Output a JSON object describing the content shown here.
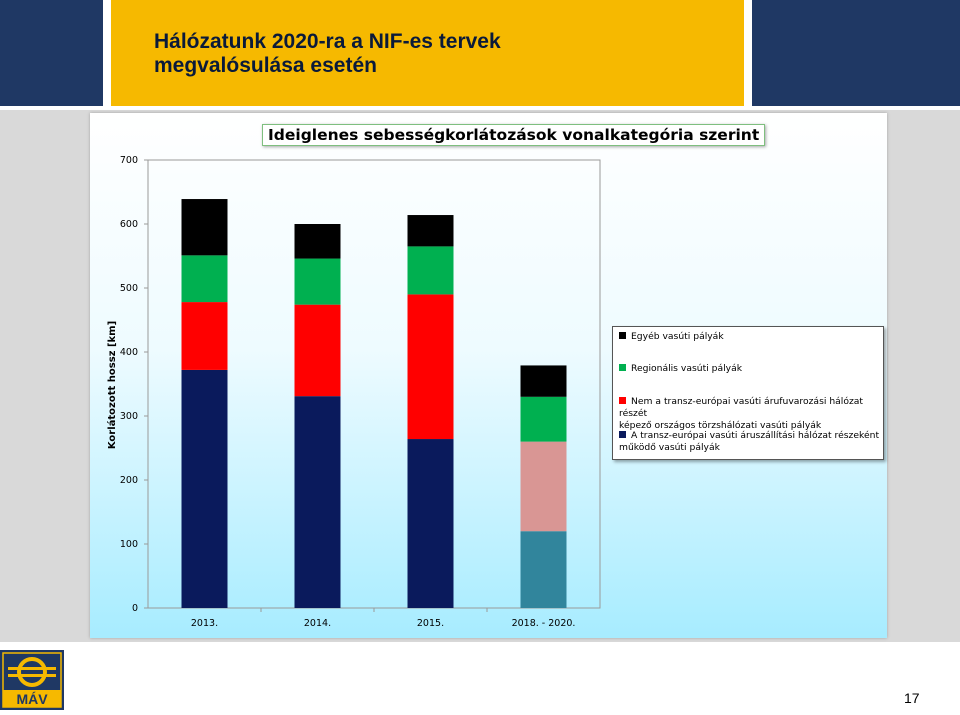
{
  "header": {
    "title": "Hálózatunk 2020-ra a NIF-es tervek\nmegvalósulása esetén"
  },
  "page_number": "17",
  "logo": {
    "text": "MÁV"
  },
  "colors": {
    "header_blue": "#1f3864",
    "header_yellow": "#f6b900",
    "tent": "#0a1a5c",
    "non_tent": "#ff0000",
    "regional": "#00b050",
    "other": "#000000",
    "projected_tent": "#31859c",
    "projected_non_tent": "#d99694"
  },
  "chart_data": {
    "type": "bar",
    "stacked": true,
    "title": "Ideiglenes sebességkorlátozások vonalkategória szerint",
    "ylabel": "Korlátozott hossz [km]",
    "xlabel": "",
    "ylim": [
      0,
      700
    ],
    "yticks": [
      "0",
      "100",
      "200",
      "300",
      "400",
      "500",
      "600",
      "700"
    ],
    "categories": [
      "2013.",
      "2014.",
      "2015.",
      "2018. - 2020."
    ],
    "series": [
      {
        "name": "A transz-európai vasúti áruszállítási hálózat részeként\nműködő vasúti pályák",
        "values": [
          372,
          331,
          264,
          120
        ]
      },
      {
        "name": "Nem a transz-európai vasúti árufuvarozási hálózat részét\nképező országos törzshálózati vasúti pályák",
        "values": [
          106,
          143,
          226,
          140
        ]
      },
      {
        "name": "Regionális vasúti pályák",
        "values": [
          73,
          72,
          75,
          70
        ]
      },
      {
        "name": "Egyéb vasúti pályák",
        "values": [
          88,
          54,
          49,
          49
        ]
      }
    ],
    "legend_position": "right",
    "legend_order": [
      3,
      2,
      1,
      0
    ],
    "grid": false
  }
}
